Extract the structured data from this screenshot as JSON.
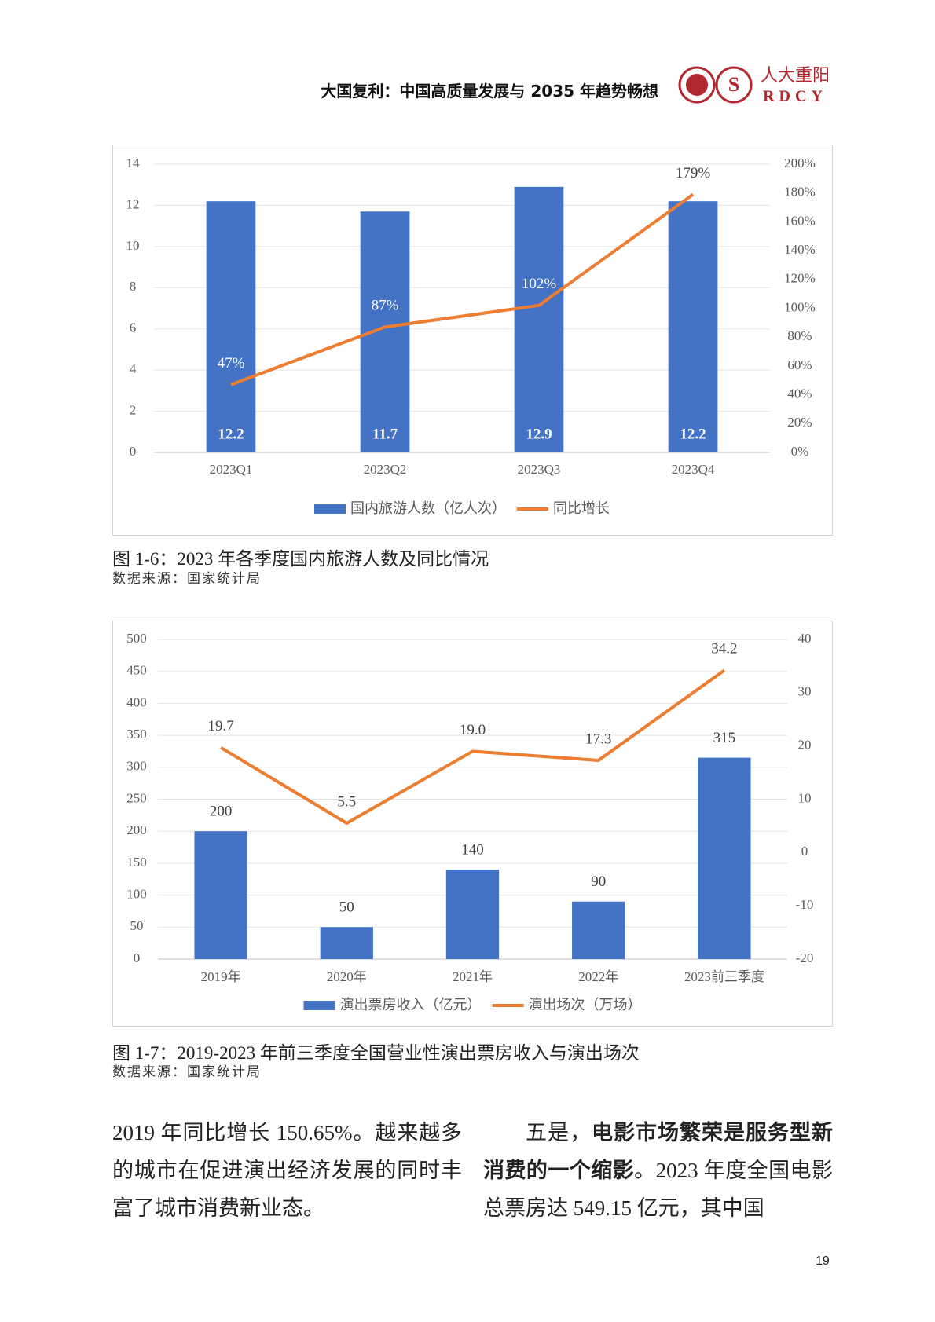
{
  "header": {
    "title": "大国复利：中国高质量发展与 2035 年趋势畅想",
    "logo_cn": "人大重阳",
    "logo_en": "RDCY"
  },
  "chart_data": [
    {
      "type": "combo",
      "categories": [
        "2023Q1",
        "2023Q2",
        "2023Q3",
        "2023Q4"
      ],
      "series": [
        {
          "name": "国内旅游人数（亿人次）",
          "type": "bar",
          "color": "#4472c4",
          "values": [
            12.2,
            11.7,
            12.9,
            12.2
          ]
        },
        {
          "name": "同比增长",
          "type": "line",
          "axis": "y2",
          "color": "#ed7d31",
          "values": [
            47,
            87,
            102,
            179
          ],
          "value_labels": [
            "47%",
            "87%",
            "102%",
            "179%"
          ]
        }
      ],
      "ylim": [
        0,
        14
      ],
      "yticks": [
        0,
        2,
        4,
        6,
        8,
        10,
        12,
        14
      ],
      "y2lim": [
        0,
        200
      ],
      "y2ticks": [
        {
          "value": 0,
          "label": "0%"
        },
        {
          "value": 20,
          "label": "20%"
        },
        {
          "value": 40,
          "label": "40%"
        },
        {
          "value": 60,
          "label": "60%"
        },
        {
          "value": 80,
          "label": "80%"
        },
        {
          "value": 100,
          "label": "100%"
        },
        {
          "value": 120,
          "label": "120%"
        },
        {
          "value": 140,
          "label": "140%"
        },
        {
          "value": 160,
          "label": "160%"
        },
        {
          "value": 180,
          "label": "180%"
        },
        {
          "value": 200,
          "label": "200%"
        }
      ],
      "grid": true,
      "legend": "bottom"
    },
    {
      "type": "combo",
      "categories": [
        "2019年",
        "2020年",
        "2021年",
        "2022年",
        "2023前三季度"
      ],
      "series": [
        {
          "name": "演出票房收入（亿元）",
          "type": "bar",
          "color": "#4472c4",
          "values": [
            200,
            50,
            140,
            90,
            315
          ]
        },
        {
          "name": "演出场次（万场）",
          "type": "line",
          "axis": "y2",
          "color": "#ed7d31",
          "values": [
            19.7,
            5.5,
            19.0,
            17.3,
            34.2
          ],
          "value_labels": [
            "19.7",
            "5.5",
            "19.0",
            "17.3",
            "34.2"
          ]
        }
      ],
      "ylim": [
        0,
        500
      ],
      "yticks": [
        0,
        50,
        100,
        150,
        200,
        250,
        300,
        350,
        400,
        450,
        500
      ],
      "y2lim": [
        -20,
        40
      ],
      "y2ticks": [
        -20,
        -10,
        0,
        10,
        20,
        30,
        40
      ],
      "grid": true,
      "legend": "bottom"
    }
  ],
  "captions": [
    {
      "title": "图 1-6：2023 年各季度国内旅游人数及同比情况",
      "source": "数据来源：国家统计局"
    },
    {
      "title": "图 1-7：2019-2023 年前三季度全国营业性演出票房收入与演出场次",
      "source": "数据来源：国家统计局"
    }
  ],
  "body": {
    "left": "2019 年同比增长 150.65%。越来越多的城市在促进演出经济发展的同时丰富了城市消费新业态。",
    "right": [
      "五是，",
      "电影市场繁荣是服务型新消费的一个缩影",
      "。2023 年度全国电影总票房达 549.15 亿元，其中国"
    ]
  },
  "page_number": "19"
}
